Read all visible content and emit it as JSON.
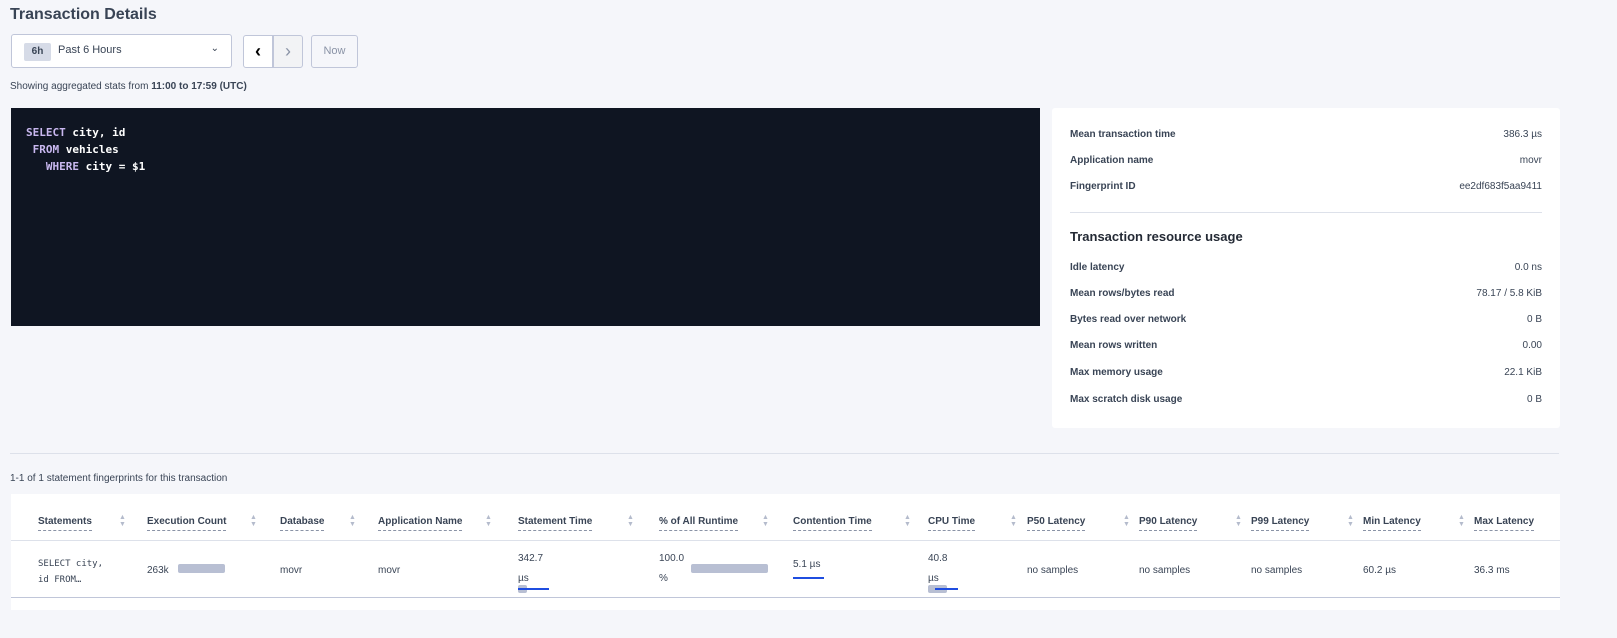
{
  "page": {
    "title": "Transaction Details"
  },
  "time_picker": {
    "badge": "6h",
    "label": "Past 6 Hours",
    "now_label": "Now",
    "prev_icon": "chevron-left-icon",
    "next_icon": "chevron-right-icon"
  },
  "aggregation": {
    "prefix": "Showing aggregated stats from ",
    "range": "11:00 to 17:59 (UTC)"
  },
  "sql": {
    "lines": [
      {
        "kw": "SELECT",
        "rest": " city, id"
      },
      {
        "kw": " FROM",
        "rest": " vehicles"
      },
      {
        "kw": "   WHERE",
        "rest": " city = $1"
      }
    ]
  },
  "summary": [
    {
      "k": "Mean transaction time",
      "v": "386.3 µs"
    },
    {
      "k": "Application name",
      "v": "movr"
    },
    {
      "k": "Fingerprint ID",
      "v": "ee2df683f5aa9411"
    }
  ],
  "resource": {
    "title": "Transaction resource usage",
    "rows": [
      {
        "k": "Idle latency",
        "v": "0.0 ns"
      },
      {
        "k": "Mean rows/bytes read",
        "v": "78.17 / 5.8 KiB"
      },
      {
        "k": "Bytes read over network",
        "v": "0 B"
      },
      {
        "k": "Mean rows written",
        "v": "0.00"
      },
      {
        "k": "Max memory usage",
        "v": "22.1 KiB"
      },
      {
        "k": "Max scratch disk usage",
        "v": "0 B"
      }
    ]
  },
  "statements": {
    "count_text": "1-1 of 1 statement fingerprints for this transaction",
    "columns": [
      "Statements",
      "Execution Count",
      "Database",
      "Application Name",
      "Statement Time",
      "% of All Runtime",
      "Contention Time",
      "CPU Time",
      "P50 Latency",
      "P90 Latency",
      "P99 Latency",
      "Min Latency",
      "Max Latency"
    ],
    "rows": [
      {
        "statement": [
          "SELECT city,",
          "id FROM…"
        ],
        "execution_count": "263k",
        "database": "movr",
        "application_name": "movr",
        "statement_time": [
          "342.7",
          "µs"
        ],
        "pct_runtime": [
          "100.0",
          "%"
        ],
        "contention_time": "5.1 µs",
        "cpu_time": [
          "40.8",
          "µs"
        ],
        "p50": "no samples",
        "p90": "no samples",
        "p99": "no samples",
        "min_latency": "60.2 µs",
        "max_latency": "36.3 ms"
      }
    ]
  },
  "colors": {
    "code_bg": "#0f1522",
    "keyword": "#c9b8f0",
    "bar": "#b8bfd3",
    "bar_accent": "#1f4de0"
  }
}
